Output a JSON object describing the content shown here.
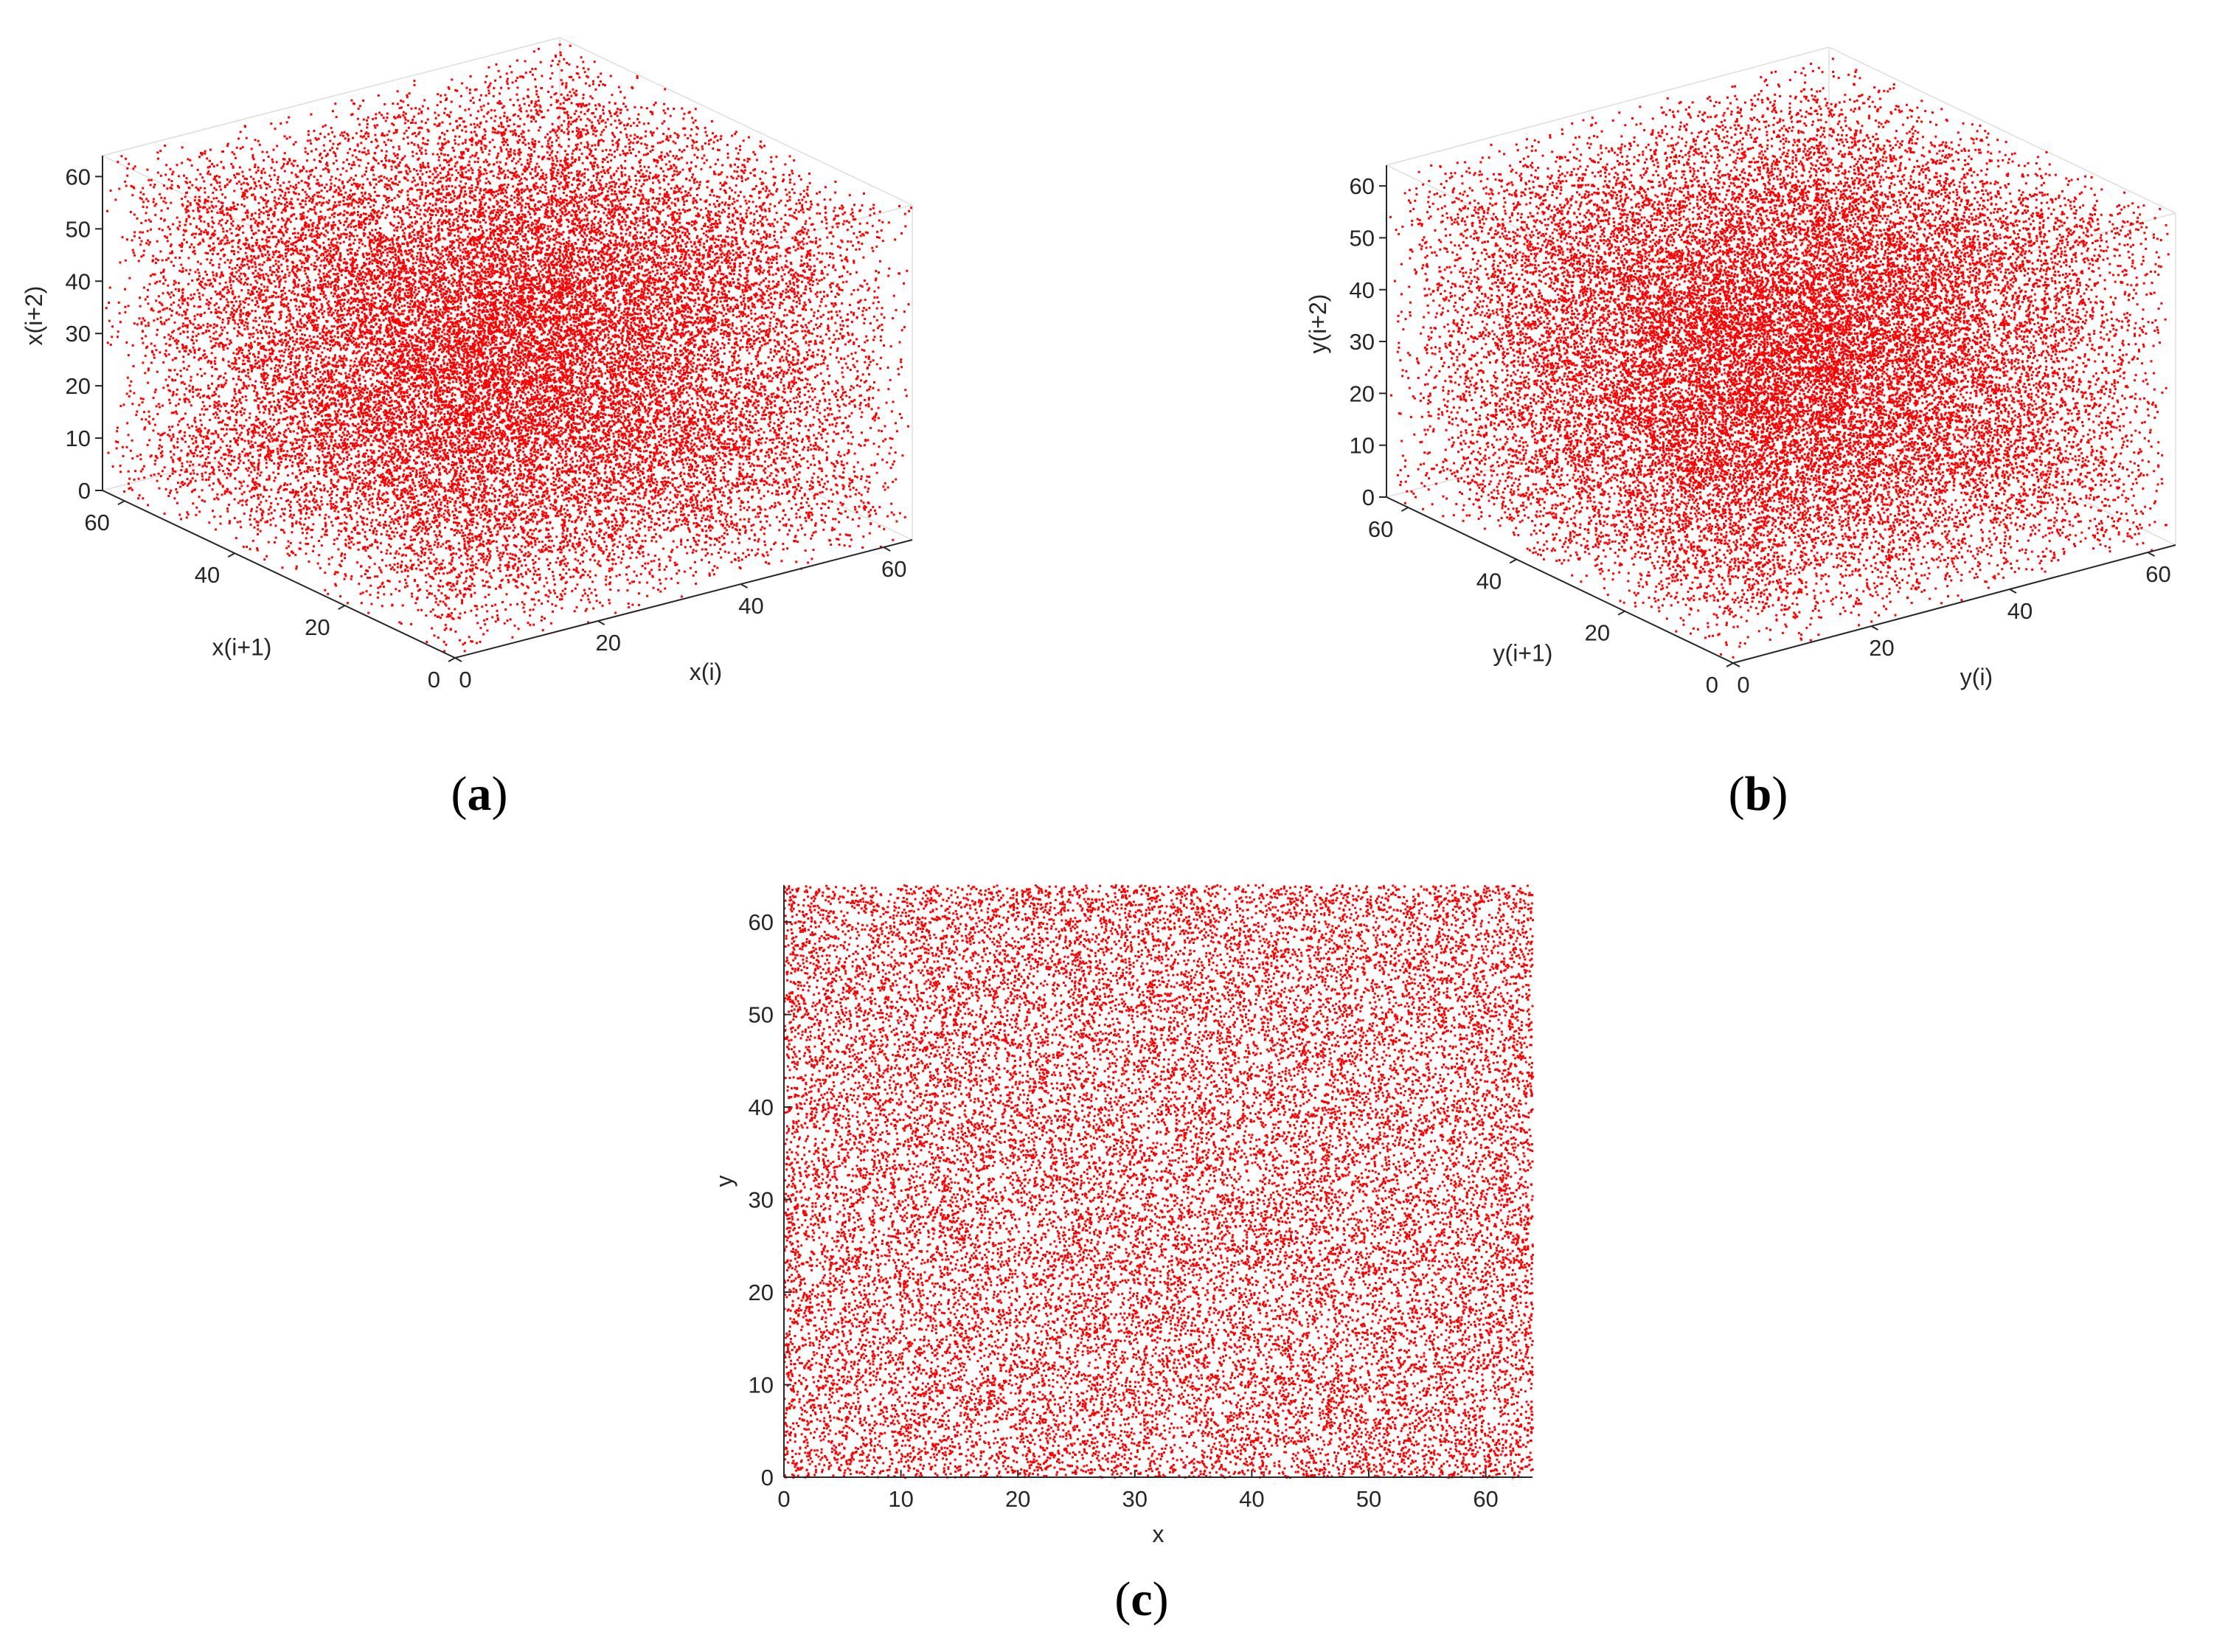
{
  "figure": {
    "panel_labels": [
      {
        "open": "(",
        "letter": "a",
        "close": ")"
      },
      {
        "open": "(",
        "letter": "b",
        "close": ")"
      },
      {
        "open": "(",
        "letter": "c",
        "close": ")"
      }
    ]
  },
  "colors": {
    "points": "#ff0000",
    "axis": "#262626",
    "background": "#ffffff"
  },
  "chart_data": [
    {
      "type": "scatter",
      "dimensions": 3,
      "panel": "a",
      "xlabel": "x(i)",
      "ylabel": "x(i+1)",
      "zlabel": "x(i+2)",
      "xlim": [
        0,
        64
      ],
      "ylim": [
        0,
        64
      ],
      "zlim": [
        0,
        64
      ],
      "xticks": [
        0,
        20,
        40,
        60
      ],
      "yticks": [
        0,
        20,
        40,
        60
      ],
      "zticks": [
        0,
        10,
        20,
        30,
        40,
        50,
        60
      ],
      "distribution": "uniform",
      "grid": false,
      "point_color": "#ff0000"
    },
    {
      "type": "scatter",
      "dimensions": 3,
      "panel": "b",
      "xlabel": "y(i)",
      "ylabel": "y(i+1)",
      "zlabel": "y(i+2)",
      "xlim": [
        0,
        64
      ],
      "ylim": [
        0,
        64
      ],
      "zlim": [
        0,
        64
      ],
      "xticks": [
        0,
        20,
        40,
        60
      ],
      "yticks": [
        0,
        20,
        40,
        60
      ],
      "zticks": [
        0,
        10,
        20,
        30,
        40,
        50,
        60
      ],
      "distribution": "uniform",
      "grid": false,
      "point_color": "#ff0000"
    },
    {
      "type": "scatter",
      "dimensions": 2,
      "panel": "c",
      "xlabel": "x",
      "ylabel": "y",
      "xlim": [
        0,
        64
      ],
      "ylim": [
        0,
        64
      ],
      "xticks": [
        0,
        10,
        20,
        30,
        40,
        50,
        60
      ],
      "yticks": [
        0,
        10,
        20,
        30,
        40,
        50,
        60
      ],
      "distribution": "uniform",
      "grid": false,
      "point_color": "#ff0000"
    }
  ]
}
